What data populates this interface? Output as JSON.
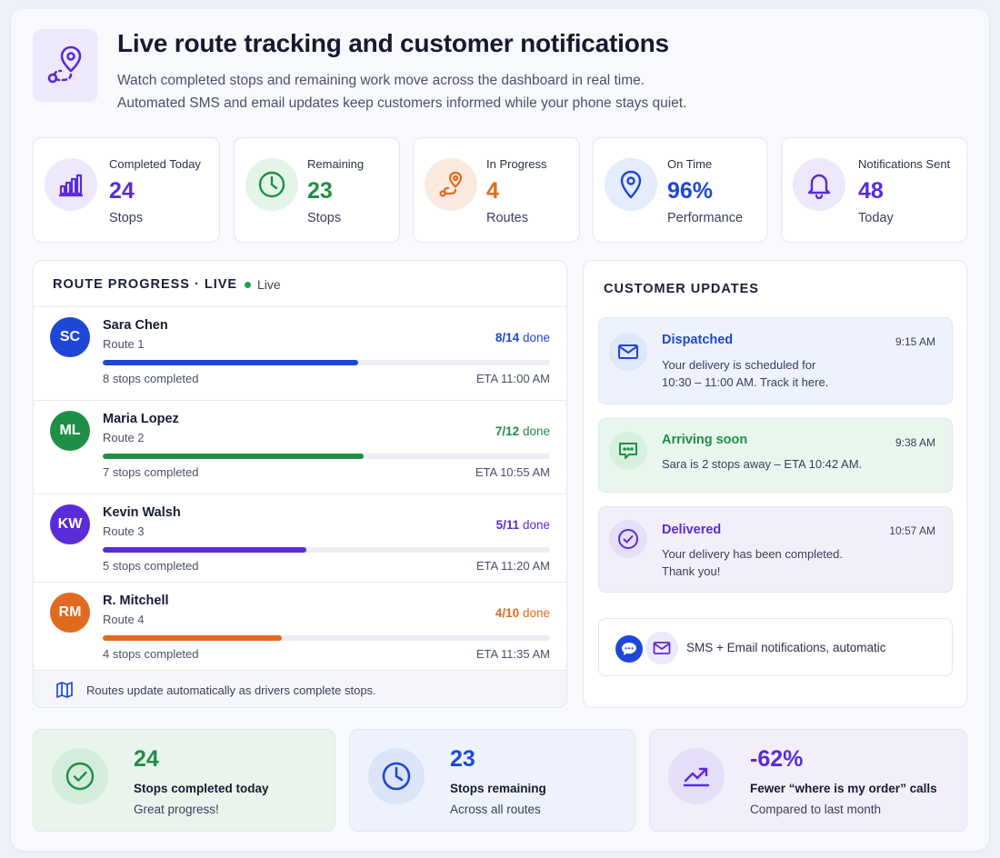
{
  "header": {
    "title": "Live route tracking and customer notifications",
    "subtitle_line1": "Watch completed stops and remaining work move across the dashboard in real time.",
    "subtitle_line2": "Automated SMS and email updates keep customers informed while your phone stays quiet.",
    "icon": "route-pin-icon"
  },
  "stats": [
    {
      "label": "Completed Today",
      "value": "24",
      "unit": "Stops",
      "icon": "bar-chart-icon",
      "color": "#5a2bd8"
    },
    {
      "label": "Remaining",
      "value": "23",
      "unit": "Stops",
      "icon": "clock-icon",
      "color": "#1f8f45"
    },
    {
      "label": "In Progress",
      "value": "4",
      "unit": "Routes",
      "icon": "route-icon",
      "color": "#e06a1f"
    },
    {
      "label": "On Time",
      "value": "96%",
      "unit": "Performance",
      "icon": "location-pin-icon",
      "color": "#1e47d6"
    },
    {
      "label": "Notifications Sent",
      "value": "48",
      "unit": "Today",
      "icon": "bell-icon",
      "color": "#5a2bd8"
    }
  ],
  "route_progress": {
    "title": "ROUTE PROGRESS · LIVE",
    "live_label": "Live",
    "done_suffix": "done",
    "drivers": [
      {
        "initials": "SC",
        "name": "Sara Chen",
        "route": "Route 1",
        "done_text": "8/14",
        "progress": 0.5714,
        "stops_text": "8 stops completed",
        "eta": "ETA 11:00 AM",
        "color": "#1e47d6"
      },
      {
        "initials": "ML",
        "name": "Maria Lopez",
        "route": "Route 2",
        "done_text": "7/12",
        "progress": 0.5833,
        "stops_text": "7 stops completed",
        "eta": "ETA 10:55 AM",
        "color": "#1f8f45"
      },
      {
        "initials": "KW",
        "name": "Kevin Walsh",
        "route": "Route 3",
        "done_text": "5/11",
        "progress": 0.4545,
        "stops_text": "5 stops completed",
        "eta": "ETA 11:20 AM",
        "color": "#5a2bd8"
      },
      {
        "initials": "RM",
        "name": "R. Mitchell",
        "route": "Route 4",
        "done_text": "4/10",
        "progress": 0.4,
        "stops_text": "4 stops completed",
        "eta": "ETA 11:35 AM",
        "color": "#e06a1f"
      }
    ],
    "footer": "Routes update automatically as drivers complete stops."
  },
  "customer_updates": {
    "title": "CUSTOMER UPDATES",
    "messages": [
      {
        "title": "Dispatched",
        "time": "9:15 AM",
        "line1": "Your delivery is scheduled for",
        "line2": "10:30 – 11:00 AM. Track it here.",
        "icon": "envelope-icon",
        "color": "#1e47d6"
      },
      {
        "title": "Arriving soon",
        "time": "9:38 AM",
        "line1": "Sara is 2 stops away – ETA 10:42 AM.",
        "line2": "",
        "icon": "chat-icon",
        "color": "#1f8f45"
      },
      {
        "title": "Delivered",
        "time": "10:57 AM",
        "line1": "Your delivery has been completed.",
        "line2": "Thank you!",
        "icon": "check-circle-icon",
        "color": "#5a2bd8"
      }
    ],
    "auto_label": "SMS + Email notifications, automatic"
  },
  "summary": [
    {
      "value": "24",
      "label": "Stops completed today",
      "sub": "Great progress!",
      "icon": "check-circle-icon",
      "color": "#1f8f45"
    },
    {
      "value": "23",
      "label": "Stops remaining",
      "sub": "Across all routes",
      "icon": "clock-icon",
      "color": "#1e47d6"
    },
    {
      "value": "-62%",
      "label": "Fewer “where is my order” calls",
      "sub": "Compared to last month",
      "icon": "trend-up-icon",
      "color": "#5a2bd8"
    }
  ]
}
